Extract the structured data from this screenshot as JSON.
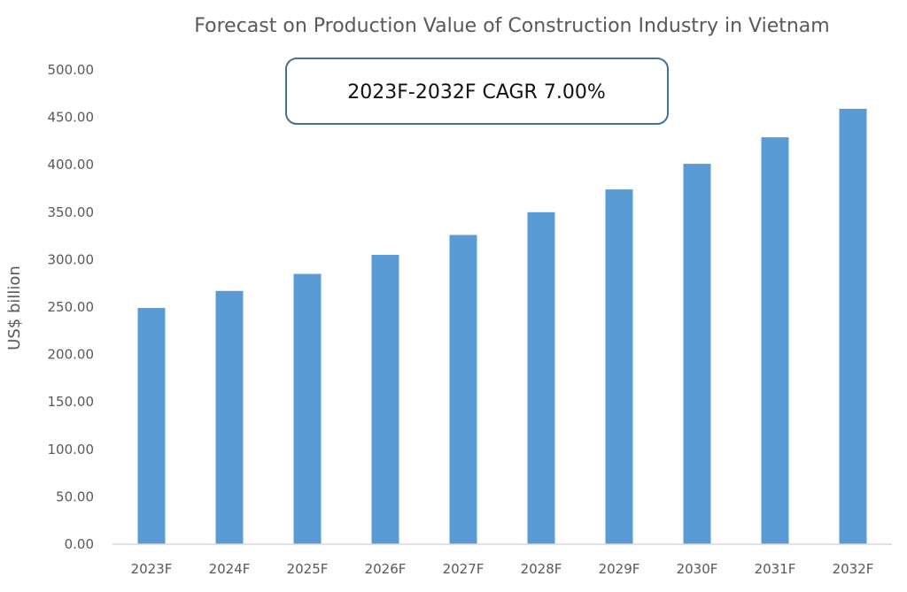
{
  "chart_data": {
    "type": "bar",
    "title": "Forecast on Production Value of Construction Industry in Vietnam",
    "xlabel": "",
    "ylabel": "US$ billion",
    "annotation": "2023F-2032F CAGR 7.00%",
    "categories": [
      "2023F",
      "2024F",
      "2025F",
      "2026F",
      "2027F",
      "2028F",
      "2029F",
      "2030F",
      "2031F",
      "2032F"
    ],
    "values": [
      249,
      267,
      285,
      305,
      326,
      350,
      374,
      401,
      429,
      459
    ],
    "ylim": [
      0,
      500
    ],
    "yticks": [
      "0.00",
      "50.00",
      "100.00",
      "150.00",
      "200.00",
      "250.00",
      "300.00",
      "350.00",
      "400.00",
      "450.00",
      "500.00"
    ],
    "grid": false,
    "legend": "none",
    "colors": {
      "bar": "#5B9BD5",
      "axis": "#D9D9D9",
      "text": "#595959",
      "box_border": "#41719C"
    }
  }
}
